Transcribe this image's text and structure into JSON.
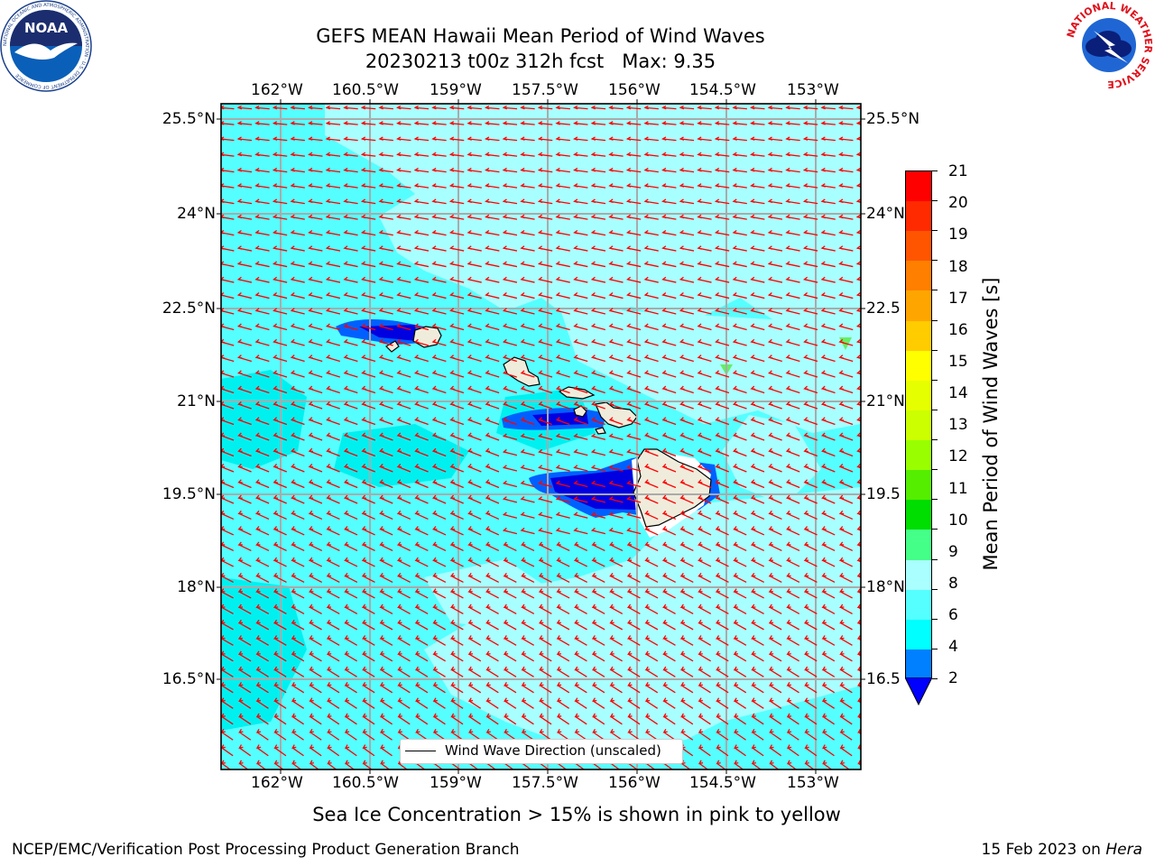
{
  "title_line1": "GEFS MEAN Hawaii Mean Period of Wind Waves",
  "title_line2": "20230213 t00z 312h fcst   Max: 9.35",
  "lon_labels": [
    "162°W",
    "160.5°W",
    "159°W",
    "157.5°W",
    "156°W",
    "154.5°W",
    "153°W"
  ],
  "lat_labels_left": [
    "25.5°N",
    "24°N",
    "22.5°N",
    "21°N",
    "19.5°N",
    "18°N",
    "16.5°N"
  ],
  "lat_labels_right": [
    "25.5°N",
    "24°N",
    "22.5",
    "21°N",
    "19.5",
    "18°N",
    "16.5"
  ],
  "legend_label": "Wind Wave Direction (unscaled)",
  "colorbar": {
    "label": "Mean Period of Wind Waves [s]",
    "ticks": [
      "21",
      "20",
      "19",
      "18",
      "17",
      "16",
      "15",
      "14",
      "13",
      "12",
      "11",
      "10",
      "9",
      "8",
      "6",
      "4",
      "2"
    ],
    "colors": [
      "#ff0000",
      "#ff2a00",
      "#ff5500",
      "#ff7f00",
      "#ffa500",
      "#ffcc00",
      "#ffff00",
      "#e6ff00",
      "#ccff00",
      "#99ff00",
      "#55ee00",
      "#00dd00",
      "#44ff88",
      "#aaffff",
      "#55ffff",
      "#00ffff",
      "#0080ff"
    ],
    "extend_color": "#0000ff"
  },
  "map_colors": {
    "ocean_light": "#a8ffff",
    "ocean_mid": "#55ffff",
    "ocean_dark": "#00f0f0",
    "blue": "#0060ff",
    "deep_blue": "#0000e0",
    "land": "#f0ecdc",
    "arrow": "#ff0000",
    "grid": "#aaaaaa"
  },
  "sea_ice_note": "Sea Ice Concentration > 15% is shown in pink to yellow",
  "footer_left": "NCEP/EMC/Verification Post Processing Product Generation Branch",
  "footer_right_prefix": "15 Feb 2023 on ",
  "footer_right_italic": "Hera",
  "logo_noaa_text": "NOAA",
  "logo_noaa_ring": "NATIONAL OCEANIC AND ATMOSPHERIC ADMINISTRATION · U.S. DEPARTMENT OF COMMERCE",
  "logo_nws_ring": "NATIONAL WEATHER SERVICE"
}
